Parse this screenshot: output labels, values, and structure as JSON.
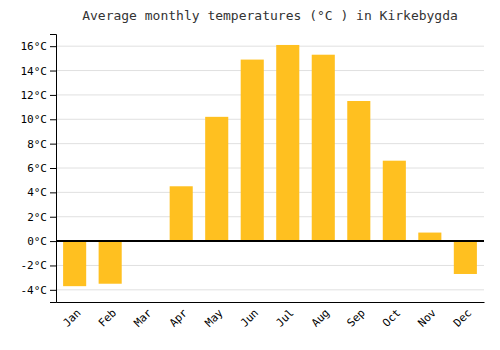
{
  "chart_data": {
    "type": "bar",
    "title": "Average monthly temperatures (°C ) in Kirkebygda",
    "categories": [
      "Jan",
      "Feb",
      "Mar",
      "Apr",
      "May",
      "Jun",
      "Jul",
      "Aug",
      "Sep",
      "Oct",
      "Nov",
      "Dec"
    ],
    "values": [
      -3.7,
      -3.5,
      0.0,
      4.5,
      10.2,
      14.9,
      16.1,
      15.3,
      11.5,
      6.6,
      0.7,
      -2.7
    ],
    "color": "#FFC020",
    "ylim": [
      -5,
      17
    ],
    "yticks": [
      {
        "value": -4,
        "label": "-4°C"
      },
      {
        "value": -2,
        "label": "-2°C"
      },
      {
        "value": 0,
        "label": "0°C"
      },
      {
        "value": 2,
        "label": "2°C"
      },
      {
        "value": 4,
        "label": "4°C"
      },
      {
        "value": 6,
        "label": "6°C"
      },
      {
        "value": 8,
        "label": "8°C"
      },
      {
        "value": 10,
        "label": "10°C"
      },
      {
        "value": 12,
        "label": "12°C"
      },
      {
        "value": 14,
        "label": "14°C"
      },
      {
        "value": 16,
        "label": "16°C"
      }
    ],
    "grid": true
  }
}
